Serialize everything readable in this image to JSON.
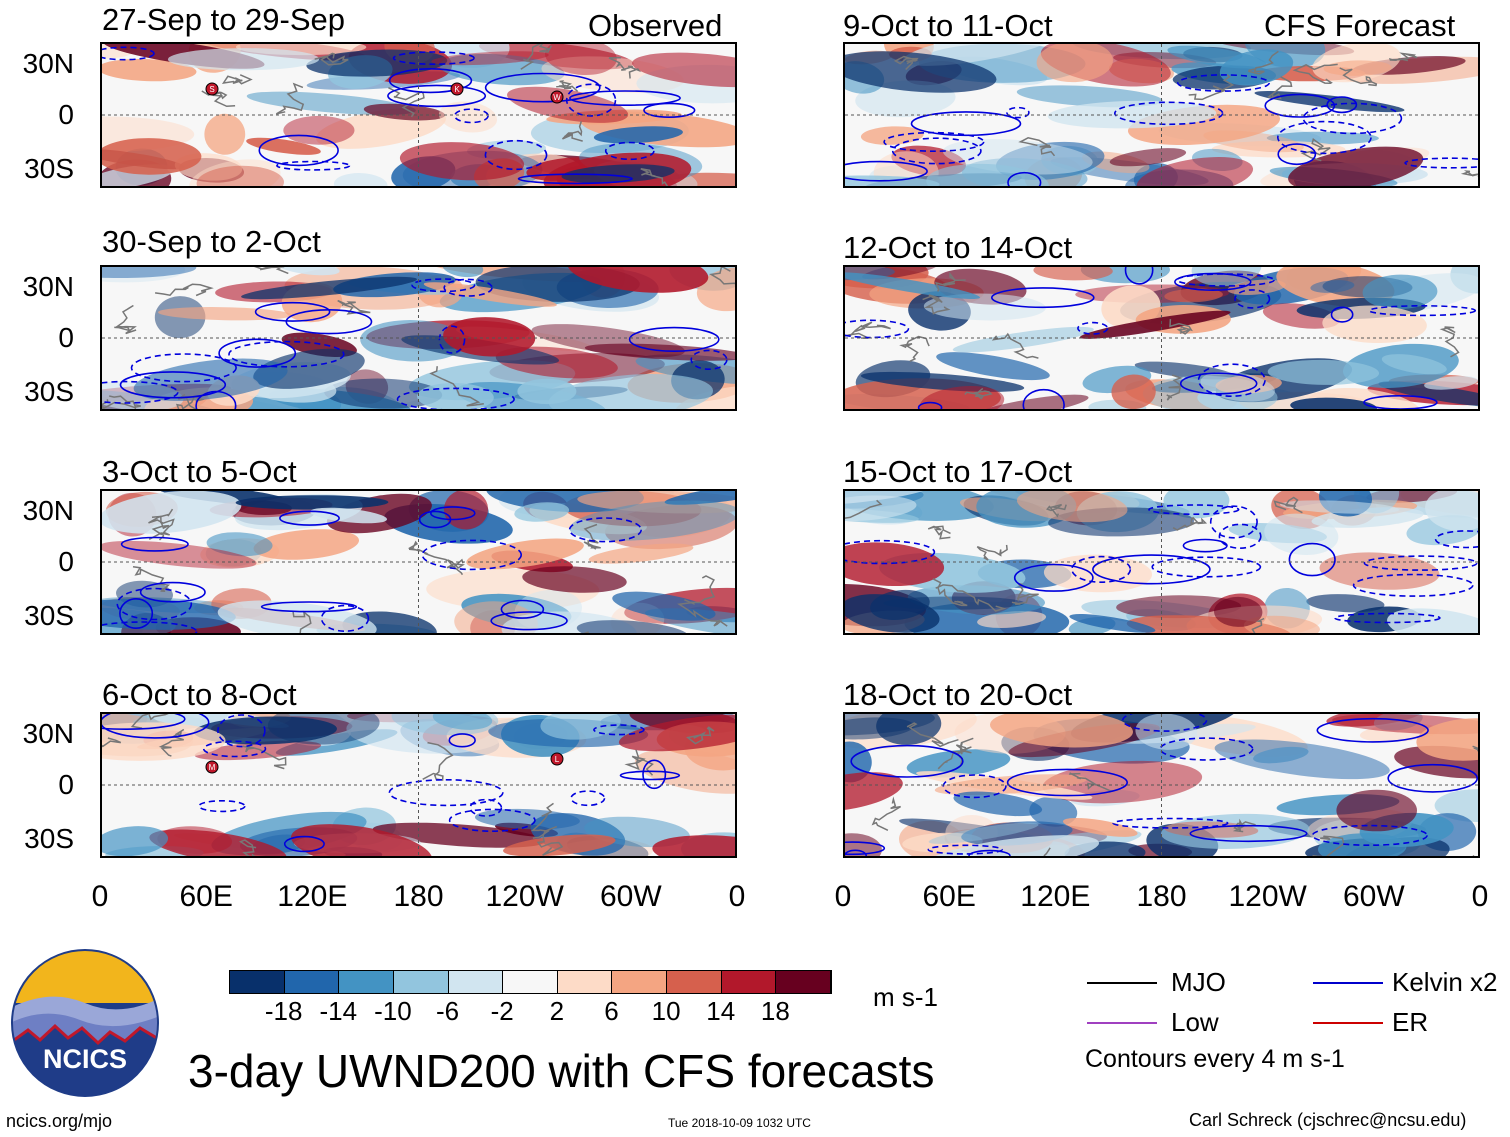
{
  "header": {
    "observed_label": "Observed",
    "forecast_label": "CFS Forecast"
  },
  "panels_left": [
    {
      "title": "27-Sep to 29-Sep",
      "markers": [
        "K",
        "W",
        "S"
      ]
    },
    {
      "title": "30-Sep to 2-Oct",
      "markers": []
    },
    {
      "title": "3-Oct to 5-Oct",
      "markers": []
    },
    {
      "title": "6-Oct to 8-Oct",
      "markers": [
        "L",
        "M"
      ]
    }
  ],
  "panels_right": [
    {
      "title": "9-Oct to 11-Oct"
    },
    {
      "title": "12-Oct to 14-Oct"
    },
    {
      "title": "15-Oct to 17-Oct"
    },
    {
      "title": "18-Oct to 20-Oct"
    }
  ],
  "axes": {
    "y_labels": [
      "30N",
      "0",
      "30S"
    ],
    "x_labels": [
      "0",
      "60E",
      "120E",
      "180",
      "120W",
      "60W",
      "0"
    ]
  },
  "colorbar": {
    "colors": [
      "#08306b",
      "#2166ac",
      "#4393c3",
      "#92c5de",
      "#d1e5f0",
      "#f7f7f7",
      "#fddbc7",
      "#f4a582",
      "#d6604d",
      "#b2182b",
      "#67001f"
    ],
    "labels": [
      "-18",
      "-14",
      "-10",
      "-6",
      "-2",
      "2",
      "6",
      "10",
      "14",
      "18"
    ],
    "units": "m s-1"
  },
  "legend": {
    "items": [
      {
        "label": "MJO",
        "color": "#000000"
      },
      {
        "label": "Kelvin x2",
        "color": "#0000cc"
      },
      {
        "label": "Low",
        "color": "#a040c0"
      },
      {
        "label": "ER",
        "color": "#cc0000"
      }
    ],
    "contours_note": "Contours every 4 m s-1"
  },
  "logo": {
    "text": "NCICS"
  },
  "main_title": "3-day UWND200 with CFS forecasts",
  "footer": {
    "url": "ncics.org/mjo",
    "timestamp": "Tue 2018-10-09 1032 UTC",
    "credit": "Carl Schreck (cjschrec@ncsu.edu)"
  }
}
